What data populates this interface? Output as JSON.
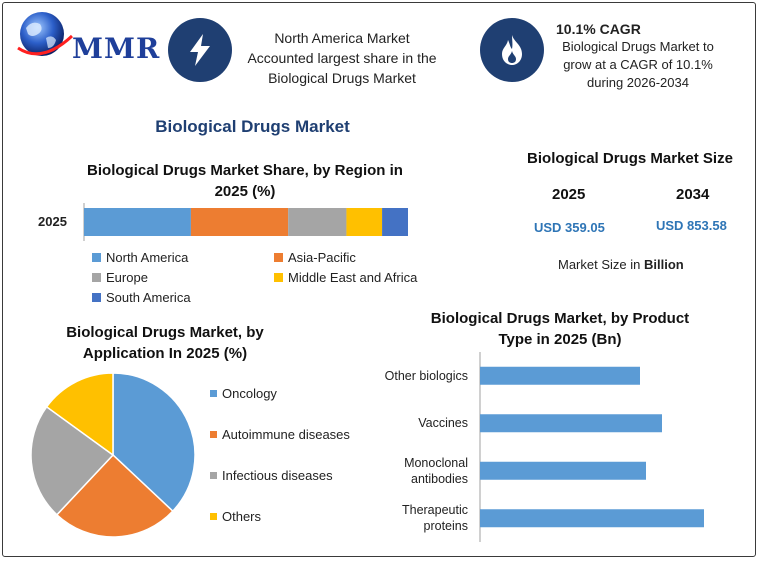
{
  "brand": {
    "logo_text": "MMR"
  },
  "callouts": [
    {
      "icon": "lightning-icon",
      "lines": [
        "North America Market",
        "Accounted largest share in the",
        "Biological Drugs Market"
      ]
    },
    {
      "icon": "flame-icon",
      "title": "10.1% CAGR",
      "lines": [
        "Biological Drugs Market to",
        "grow at a CAGR of 10.1%",
        "during 2026-2034"
      ]
    }
  ],
  "page_title": "Biological Drugs Market",
  "market_size": {
    "title": "Biological Drugs Market Size",
    "year_a": "2025",
    "year_b": "2034",
    "value_a": "USD 359.05",
    "value_b": "USD 853.58",
    "unit_prefix": "Market Size in ",
    "unit_bold": "Billion"
  },
  "colors": {
    "blue": "#5b9bd5",
    "orange": "#ed7d31",
    "gray": "#a5a5a5",
    "yellow": "#ffc000",
    "darkblue": "#4472c4",
    "navy": "#1f3f72"
  },
  "chart_data": [
    {
      "type": "bar",
      "orientation": "horizontal-stacked",
      "title": "Biological Drugs Market Share, by Region in 2025 (%)",
      "title_lines": [
        "Biological Drugs Market Share, by Region in",
        "2025 (%)"
      ],
      "categories": [
        "2025"
      ],
      "series": [
        {
          "name": "North America",
          "values": [
            33
          ],
          "color": "#5b9bd5"
        },
        {
          "name": "Asia-Pacific",
          "values": [
            30
          ],
          "color": "#ed7d31"
        },
        {
          "name": "Europe",
          "values": [
            18
          ],
          "color": "#a5a5a5"
        },
        {
          "name": "Middle East and Africa",
          "values": [
            11
          ],
          "color": "#ffc000"
        },
        {
          "name": "South America",
          "values": [
            8
          ],
          "color": "#4472c4"
        }
      ],
      "legend": "bottom"
    },
    {
      "type": "pie",
      "title": "Biological Drugs Market, by Application In 2025 (%)",
      "title_lines": [
        "Biological Drugs Market, by",
        "Application In 2025 (%)"
      ],
      "labels": [
        "Oncology",
        "Autoimmune diseases",
        "Infectious diseases",
        "Others"
      ],
      "values": [
        37,
        25,
        23,
        15
      ],
      "colors": [
        "#5b9bd5",
        "#ed7d31",
        "#a5a5a5",
        "#ffc000"
      ],
      "legend": "right"
    },
    {
      "type": "bar",
      "orientation": "horizontal",
      "title": "Biological Drugs Market, by Product Type in 2025 (Bn)",
      "title_lines": [
        "Biological Drugs Market, by Product",
        "Type in 2025 (Bn)"
      ],
      "categories": [
        "Other biologics",
        "Vaccines",
        "Monoclonal antibodies",
        "Therapeutic proteins"
      ],
      "category_lines": [
        [
          "Other biologics"
        ],
        [
          "Vaccines"
        ],
        [
          "Monoclonal",
          "antibodies"
        ],
        [
          "Therapeutic",
          "proteins"
        ]
      ],
      "values": [
        80,
        91,
        83,
        112
      ],
      "color": "#5b9bd5",
      "xlim": [
        0,
        120
      ]
    }
  ]
}
